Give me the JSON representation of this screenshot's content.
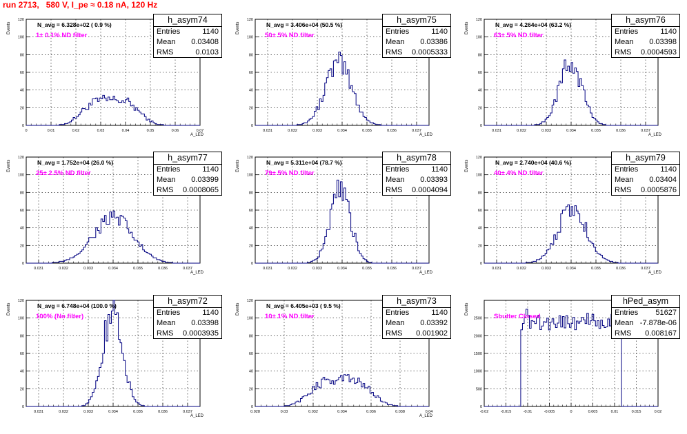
{
  "page_title": "run 2713,   580 V, I_pe ≈ 0.18 nA, 120 Hz",
  "chart_data": [
    {
      "type": "histogram",
      "name": "h_asym74",
      "navg": "N_avg = 6.328e+02 ( 0.9 %)",
      "label": "1± 0.1% ND filter",
      "ylabel": "Events",
      "xlabel": "A_LED",
      "stats": {
        "entries": "1140",
        "mean": "0.03408",
        "rms": "0.0103"
      },
      "xlim": [
        0,
        0.07
      ],
      "ylim": [
        0,
        120
      ],
      "yticks": [
        "0",
        "20",
        "40",
        "60",
        "80",
        "100",
        "120"
      ],
      "xticks": [
        "0",
        "0.01",
        "0.02",
        "0.03",
        "0.04",
        "0.05",
        "0.06",
        "0.07"
      ],
      "mean": 0.03408,
      "rms": 0.0103,
      "nbins": 100,
      "peak": 29
    },
    {
      "type": "histogram",
      "name": "h_asym75",
      "navg": "N_avg = 3.406e+04 (50.5 %)",
      "label": "50± 5% ND filter",
      "ylabel": "Events",
      "xlabel": "A_LED",
      "stats": {
        "entries": "1140",
        "mean": "0.03386",
        "rms": "0.0005333"
      },
      "xlim": [
        0.0305,
        0.0375
      ],
      "ylim": [
        0,
        120
      ],
      "yticks": [
        "0",
        "20",
        "40",
        "60",
        "80",
        "100",
        "120"
      ],
      "xticks": [
        "0.031",
        "0.032",
        "0.033",
        "0.034",
        "0.035",
        "0.036",
        "0.037"
      ],
      "mean": 0.03386,
      "rms": 0.0005333,
      "nbins": 100,
      "peak": 70
    },
    {
      "type": "histogram",
      "name": "h_asym76",
      "navg": "N_avg = 4.264e+04 (63.2 %)",
      "label": "63± 5% ND filter",
      "ylabel": "Events",
      "xlabel": "A_LED",
      "stats": {
        "entries": "1140",
        "mean": "0.03398",
        "rms": "0.0004593"
      },
      "xlim": [
        0.0305,
        0.0375
      ],
      "ylim": [
        0,
        120
      ],
      "yticks": [
        "0",
        "20",
        "40",
        "60",
        "80",
        "100",
        "120"
      ],
      "xticks": [
        "0.031",
        "0.032",
        "0.033",
        "0.034",
        "0.035",
        "0.036",
        "0.037"
      ],
      "mean": 0.03398,
      "rms": 0.0004593,
      "nbins": 100,
      "peak": 70
    },
    {
      "type": "histogram",
      "name": "h_asym77",
      "navg": "N_avg = 1.752e+04 (26.0 %)",
      "label": "25± 2.5% ND filter",
      "ylabel": "Events",
      "xlabel": "A_LED",
      "stats": {
        "entries": "1140",
        "mean": "0.03399",
        "rms": "0.0008065"
      },
      "xlim": [
        0.0305,
        0.0375
      ],
      "ylim": [
        0,
        120
      ],
      "yticks": [
        "0",
        "20",
        "40",
        "60",
        "80",
        "100",
        "120"
      ],
      "xticks": [
        "0.031",
        "0.032",
        "0.033",
        "0.034",
        "0.035",
        "0.036",
        "0.037"
      ],
      "mean": 0.03399,
      "rms": 0.0008065,
      "nbins": 100,
      "peak": 51
    },
    {
      "type": "histogram",
      "name": "h_asym78",
      "navg": "N_avg = 5.311e+04 (78.7 %)",
      "label": "79± 5% ND filter",
      "ylabel": "Events",
      "xlabel": "A_LED",
      "stats": {
        "entries": "1140",
        "mean": "0.03393",
        "rms": "0.0004094"
      },
      "xlim": [
        0.0305,
        0.0375
      ],
      "ylim": [
        0,
        120
      ],
      "yticks": [
        "0",
        "20",
        "40",
        "60",
        "80",
        "100",
        "120"
      ],
      "xticks": [
        "0.031",
        "0.032",
        "0.033",
        "0.034",
        "0.035",
        "0.036",
        "0.037"
      ],
      "mean": 0.03393,
      "rms": 0.0004094,
      "nbins": 100,
      "peak": 81
    },
    {
      "type": "histogram",
      "name": "h_asym79",
      "navg": "N_avg = 2.740e+04 (40.6 %)",
      "label": "40± 4% ND filter",
      "ylabel": "Events",
      "xlabel": "A_LED",
      "stats": {
        "entries": "1140",
        "mean": "0.03404",
        "rms": "0.0005876"
      },
      "xlim": [
        0.0305,
        0.0375
      ],
      "ylim": [
        0,
        120
      ],
      "yticks": [
        "0",
        "20",
        "40",
        "60",
        "80",
        "100",
        "120"
      ],
      "xticks": [
        "0.031",
        "0.032",
        "0.033",
        "0.034",
        "0.035",
        "0.036",
        "0.037"
      ],
      "mean": 0.03404,
      "rms": 0.0005876,
      "nbins": 100,
      "peak": 61
    },
    {
      "type": "histogram",
      "name": "h_asym72",
      "navg": "N_avg = 6.748e+04 (100.0 %)",
      "label": "100% (No filter)",
      "ylabel": "Events",
      "xlabel": "A_LED",
      "stats": {
        "entries": "1140",
        "mean": "0.03398",
        "rms": "0.0003935"
      },
      "xlim": [
        0.0305,
        0.0375
      ],
      "ylim": [
        0,
        120
      ],
      "yticks": [
        "0",
        "20",
        "40",
        "60",
        "80",
        "100",
        "120"
      ],
      "xticks": [
        "0.031",
        "0.032",
        "0.033",
        "0.034",
        "0.035",
        "0.036",
        "0.037"
      ],
      "mean": 0.03398,
      "rms": 0.0003935,
      "nbins": 100,
      "peak": 107
    },
    {
      "type": "histogram",
      "name": "h_asym73",
      "navg": "N_avg = 6.405e+03 ( 9.5 %)",
      "label": "10± 1% ND filter",
      "ylabel": "Events",
      "xlabel": "A_LED",
      "stats": {
        "entries": "1140",
        "mean": "0.03392",
        "rms": "0.001902"
      },
      "xlim": [
        0.028,
        0.04
      ],
      "ylim": [
        0,
        120
      ],
      "yticks": [
        "0",
        "20",
        "40",
        "60",
        "80",
        "100",
        "120"
      ],
      "xticks": [
        "0.028",
        "0.03",
        "0.032",
        "0.034",
        "0.036",
        "0.038",
        "0.04"
      ],
      "mean": 0.03392,
      "rms": 0.001902,
      "nbins": 100,
      "peak": 31
    },
    {
      "type": "histogram",
      "name": "hPed_asym",
      "navg": "",
      "label": "Shutter Closed",
      "ylabel": "Events",
      "xlabel": "",
      "stats": {
        "entries": "51627",
        "mean": "-7.878e-06",
        "rms": "0.008167"
      },
      "xlim": [
        -0.02,
        0.02
      ],
      "ylim": [
        0,
        3000
      ],
      "yticks": [
        "0",
        "500",
        "1000",
        "1500",
        "2000",
        "2500"
      ],
      "xticks": [
        "-0.02",
        "-0.015",
        "-0.01",
        "-0.005",
        "0",
        "0.005",
        "0.01",
        "0.015",
        "0.02"
      ],
      "shape": "pedestal",
      "peak": 2750
    }
  ]
}
